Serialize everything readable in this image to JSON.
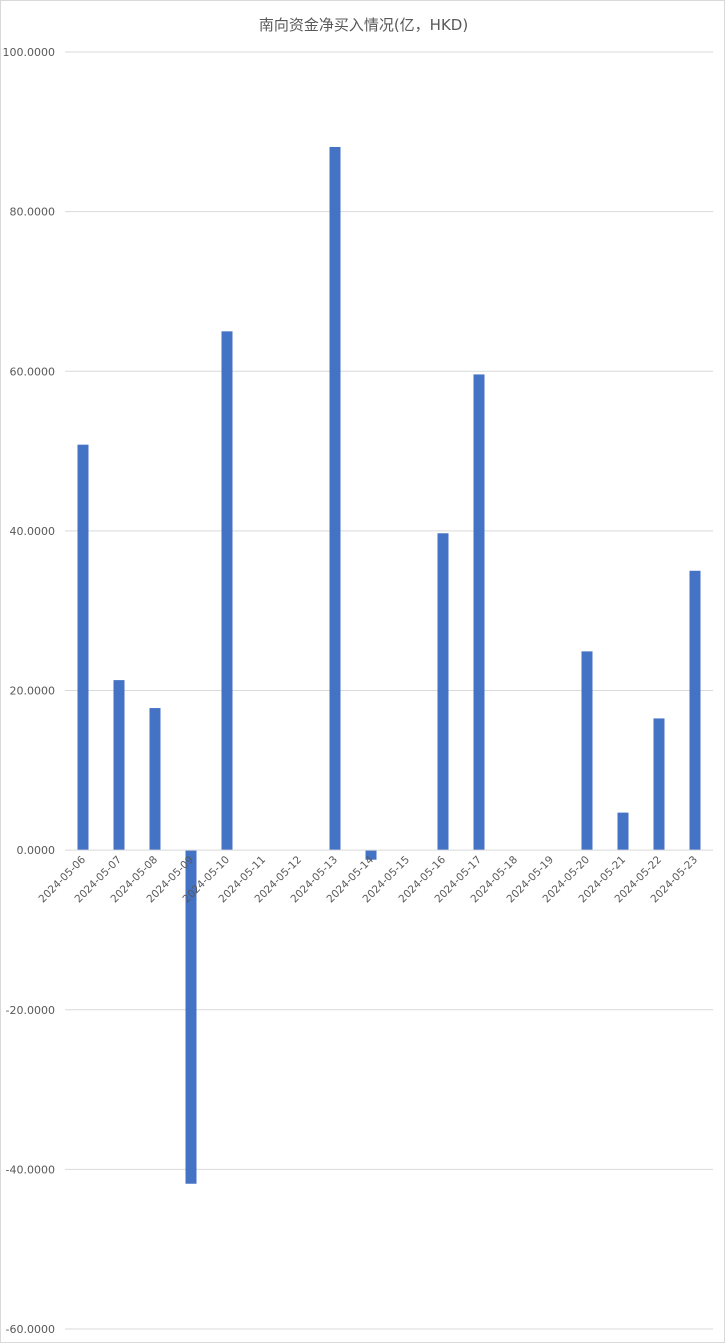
{
  "chart_data": {
    "type": "bar",
    "title": "南向资金净买入情况(亿，HKD)",
    "xlabel": "",
    "ylabel": "",
    "ylim": [
      -60,
      100
    ],
    "yticks": [
      100,
      80,
      60,
      40,
      20,
      0,
      -20,
      -40,
      -60
    ],
    "ytick_labels": [
      "100.0000",
      "80.0000",
      "60.0000",
      "40.0000",
      "20.0000",
      "0.0000",
      "-20.0000",
      "-40.0000",
      "-60.0000"
    ],
    "grid": true,
    "legend": "none",
    "bar_color": "#4472C4",
    "categories": [
      "2024-05-06",
      "2024-05-07",
      "2024-05-08",
      "2024-05-09",
      "2024-05-10",
      "2024-05-11",
      "2024-05-12",
      "2024-05-13",
      "2024-05-14",
      "2024-05-15",
      "2024-05-16",
      "2024-05-17",
      "2024-05-18",
      "2024-05-19",
      "2024-05-20",
      "2024-05-21",
      "2024-05-22",
      "2024-05-23"
    ],
    "values": [
      50.8,
      21.3,
      17.8,
      -41.8,
      65.0,
      0,
      0,
      88.1,
      -1.2,
      0,
      39.7,
      59.6,
      0,
      0,
      24.9,
      4.7,
      16.5,
      35.0
    ]
  }
}
